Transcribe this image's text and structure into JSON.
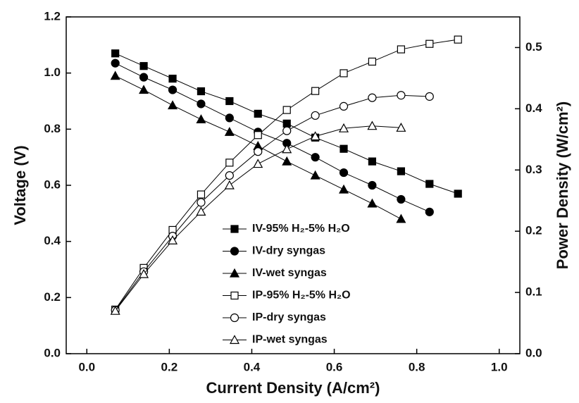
{
  "chart_data": {
    "type": "line",
    "x_label": "Current Density (A/cm²)",
    "y_label": "Voltage (V)",
    "y2_label": "Power Density (W/cm²)",
    "x": [
      0.069,
      0.138,
      0.208,
      0.277,
      0.346,
      0.415,
      0.485,
      0.554,
      0.623,
      0.692,
      0.762,
      0.831,
      0.9
    ],
    "xlim": [
      -0.05,
      1.05
    ],
    "xticks": [
      {
        "value": 0,
        "label": "0.0"
      },
      {
        "value": 0.2,
        "label": "0.2"
      },
      {
        "value": 0.4,
        "label": "0.4"
      },
      {
        "value": 0.6,
        "label": "0.6"
      },
      {
        "value": 0.8,
        "label": "0.8"
      },
      {
        "value": 1,
        "label": "1.0"
      }
    ],
    "ylim": [
      0,
      1.2
    ],
    "yticks": [
      {
        "value": 0,
        "label": "0.0"
      },
      {
        "value": 0.2,
        "label": "0.2"
      },
      {
        "value": 0.4,
        "label": "0.4"
      },
      {
        "value": 0.6,
        "label": "0.6"
      },
      {
        "value": 0.8,
        "label": "0.8"
      },
      {
        "value": 1,
        "label": "1.0"
      },
      {
        "value": 1.2,
        "label": "1.2"
      }
    ],
    "y2lim": [
      0,
      0.55
    ],
    "y2ticks": [
      {
        "value": 0,
        "label": "0.0"
      },
      0.1,
      0.2,
      0.3,
      0.4,
      0.5
    ],
    "series": [
      {
        "name": "IV-95% H₂-5% H₂O",
        "color": "#000000",
        "marker": "square",
        "filled": true,
        "values": [
          1.07,
          1.025,
          0.98,
          0.935,
          0.9,
          0.855,
          0.82,
          0.77,
          0.73,
          0.685,
          0.65,
          0.605,
          0.57
        ]
      },
      {
        "name": "IV-dry syngas",
        "color": "#000000",
        "marker": "circle",
        "filled": true,
        "values": [
          1.035,
          0.985,
          0.94,
          0.89,
          0.84,
          0.79,
          0.75,
          0.7,
          0.645,
          0.6,
          0.55,
          0.505,
          null
        ]
      },
      {
        "name": "IV-wet syngas",
        "color": "#000000",
        "marker": "triangle",
        "filled": true,
        "values": [
          0.99,
          0.94,
          0.885,
          0.835,
          0.79,
          0.74,
          0.685,
          0.635,
          0.585,
          0.535,
          0.48,
          null,
          null
        ]
      },
      {
        "name": "IP-95% H₂-5% H₂O",
        "color": "#000000",
        "marker": "square",
        "filled": false,
        "axis": "y2",
        "values": [
          0.072,
          0.14,
          0.202,
          0.26,
          0.312,
          0.357,
          0.398,
          0.429,
          0.458,
          0.477,
          0.497,
          0.506,
          0.513
        ]
      },
      {
        "name": "IP-dry syngas",
        "color": "#000000",
        "marker": "circle",
        "filled": false,
        "axis": "y2",
        "values": [
          0.071,
          0.134,
          0.192,
          0.247,
          0.291,
          0.33,
          0.364,
          0.389,
          0.404,
          0.418,
          0.422,
          0.42,
          null
        ]
      },
      {
        "name": "IP-wet syngas",
        "color": "#000000",
        "marker": "triangle",
        "filled": false,
        "axis": "y2",
        "values": [
          0.07,
          0.13,
          0.185,
          0.232,
          0.275,
          0.31,
          0.334,
          0.355,
          0.368,
          0.372,
          0.369,
          null,
          null
        ]
      }
    ]
  }
}
